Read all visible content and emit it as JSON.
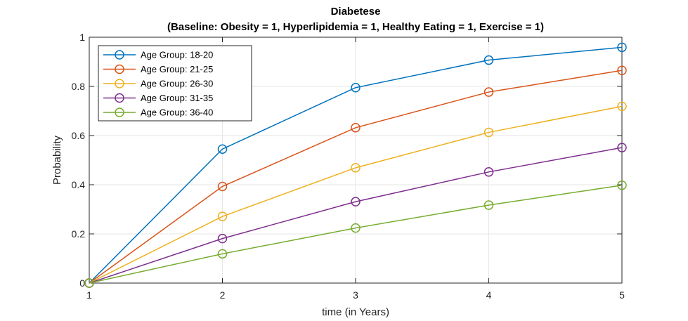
{
  "chart_data": {
    "type": "line",
    "title": "Diabetese",
    "subtitle": "(Baseline: Obesity = 1, Hyperlipidemia = 1, Healthy Eating = 1, Exercise = 1)",
    "xlabel": "time (in Years)",
    "ylabel": "Probability",
    "x": [
      1,
      2,
      3,
      4,
      5
    ],
    "xlim": [
      1,
      5
    ],
    "ylim": [
      0,
      1
    ],
    "xticks": [
      1,
      2,
      3,
      4,
      5
    ],
    "yticks": [
      0,
      0.2,
      0.4,
      0.6,
      0.8,
      1
    ],
    "ytick_labels": [
      "0",
      "0.2",
      "0.4",
      "0.6",
      "0.8",
      "1"
    ],
    "grid": true,
    "legend_position": "top-left",
    "marker": "circle",
    "series": [
      {
        "name": "Age Group: 18-20",
        "color": "#0072BD",
        "values": [
          0,
          0.545,
          0.795,
          0.907,
          0.959
        ]
      },
      {
        "name": "Age Group: 21-25",
        "color": "#D95319",
        "values": [
          0,
          0.393,
          0.632,
          0.777,
          0.865
        ]
      },
      {
        "name": "Age Group: 26-30",
        "color": "#EDB120",
        "values": [
          0,
          0.271,
          0.469,
          0.613,
          0.719
        ]
      },
      {
        "name": "Age Group: 31-35",
        "color": "#7E2F8E",
        "values": [
          0,
          0.181,
          0.331,
          0.452,
          0.551
        ]
      },
      {
        "name": "Age Group: 36-40",
        "color": "#77AC30",
        "values": [
          0,
          0.119,
          0.224,
          0.317,
          0.398
        ]
      }
    ]
  }
}
